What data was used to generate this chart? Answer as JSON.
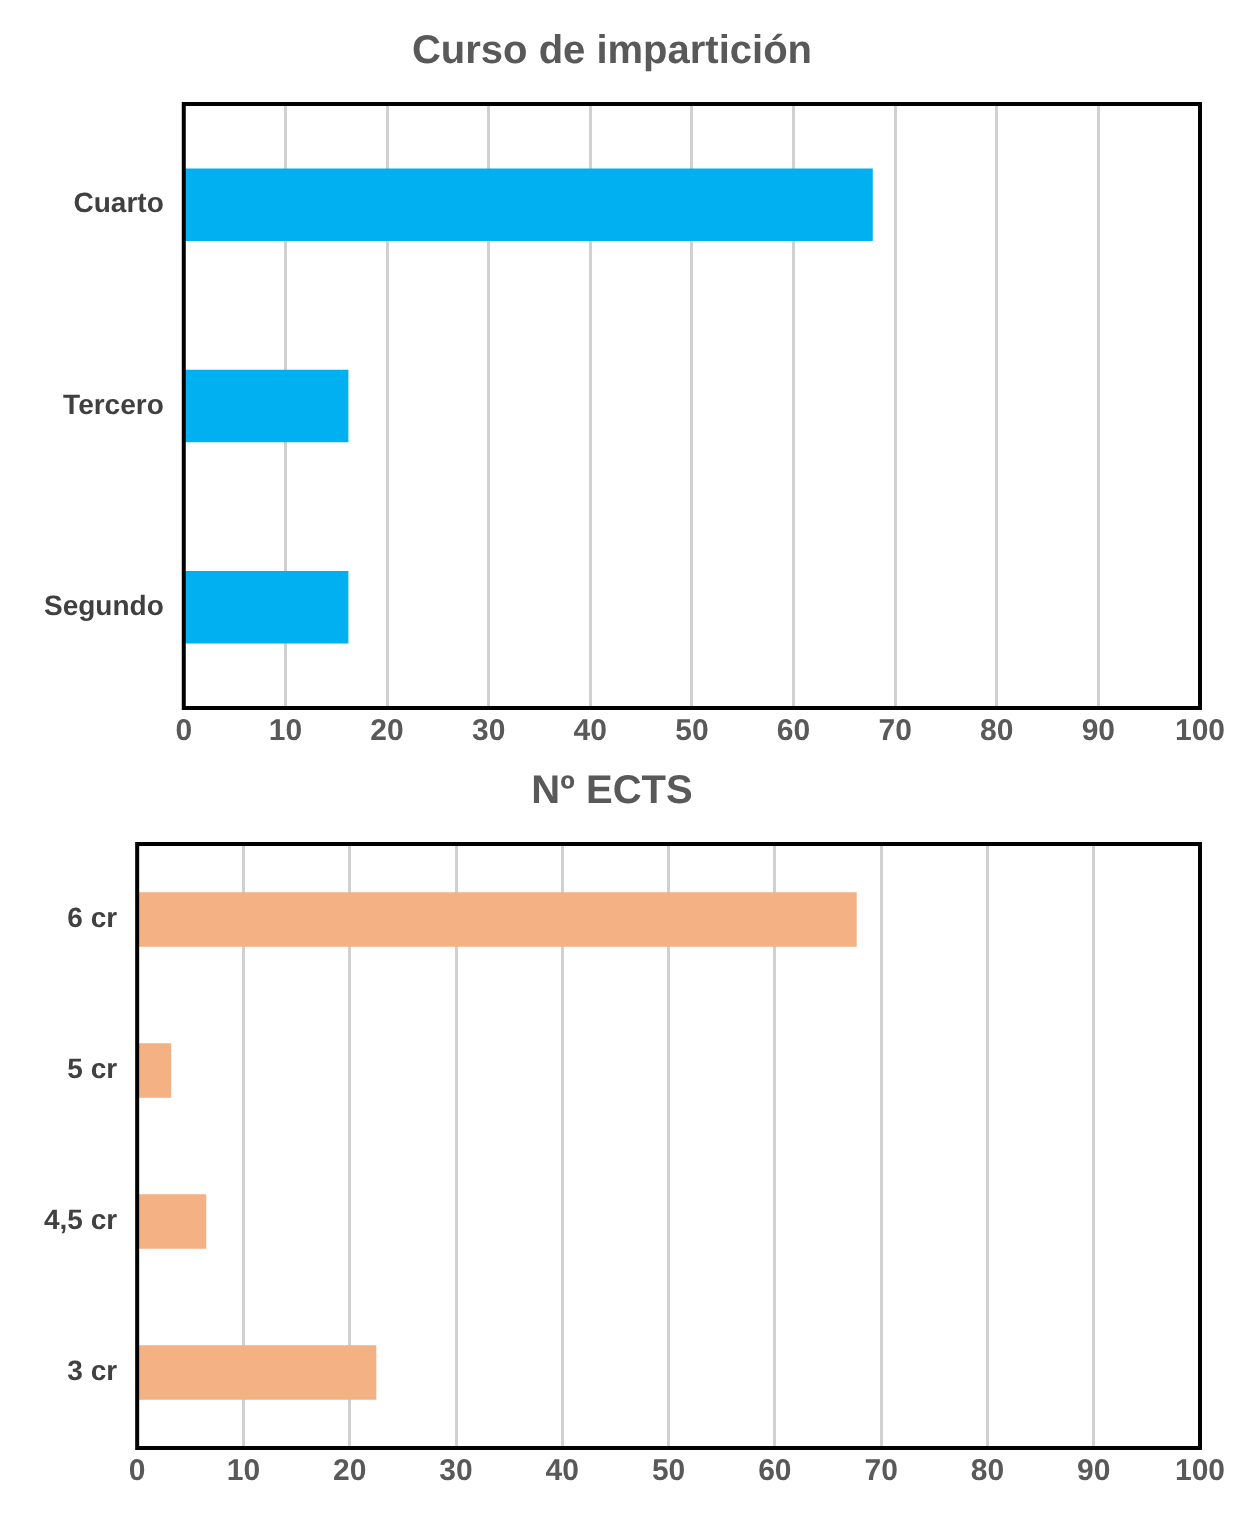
{
  "chart_data": [
    {
      "type": "bar",
      "orientation": "horizontal",
      "title": "Curso de impartición",
      "categories": [
        "Cuarto",
        "Tercero",
        "Segundo"
      ],
      "values": [
        67.8,
        16.2,
        16.2
      ],
      "color": "#00b0f0",
      "xlim": [
        0,
        100
      ],
      "xticks": [
        0,
        10,
        20,
        30,
        40,
        50,
        60,
        70,
        80,
        90,
        100
      ],
      "grid": "x"
    },
    {
      "type": "bar",
      "orientation": "horizontal",
      "title": "Nº ECTS",
      "categories": [
        "6 cr",
        "5 cr",
        "4,5 cr",
        "3 cr"
      ],
      "values": [
        67.7,
        3.2,
        6.5,
        22.5
      ],
      "color": "#f4b183",
      "xlim": [
        0,
        100
      ],
      "xticks": [
        0,
        10,
        20,
        30,
        40,
        50,
        60,
        70,
        80,
        90,
        100
      ],
      "grid": "x"
    }
  ]
}
